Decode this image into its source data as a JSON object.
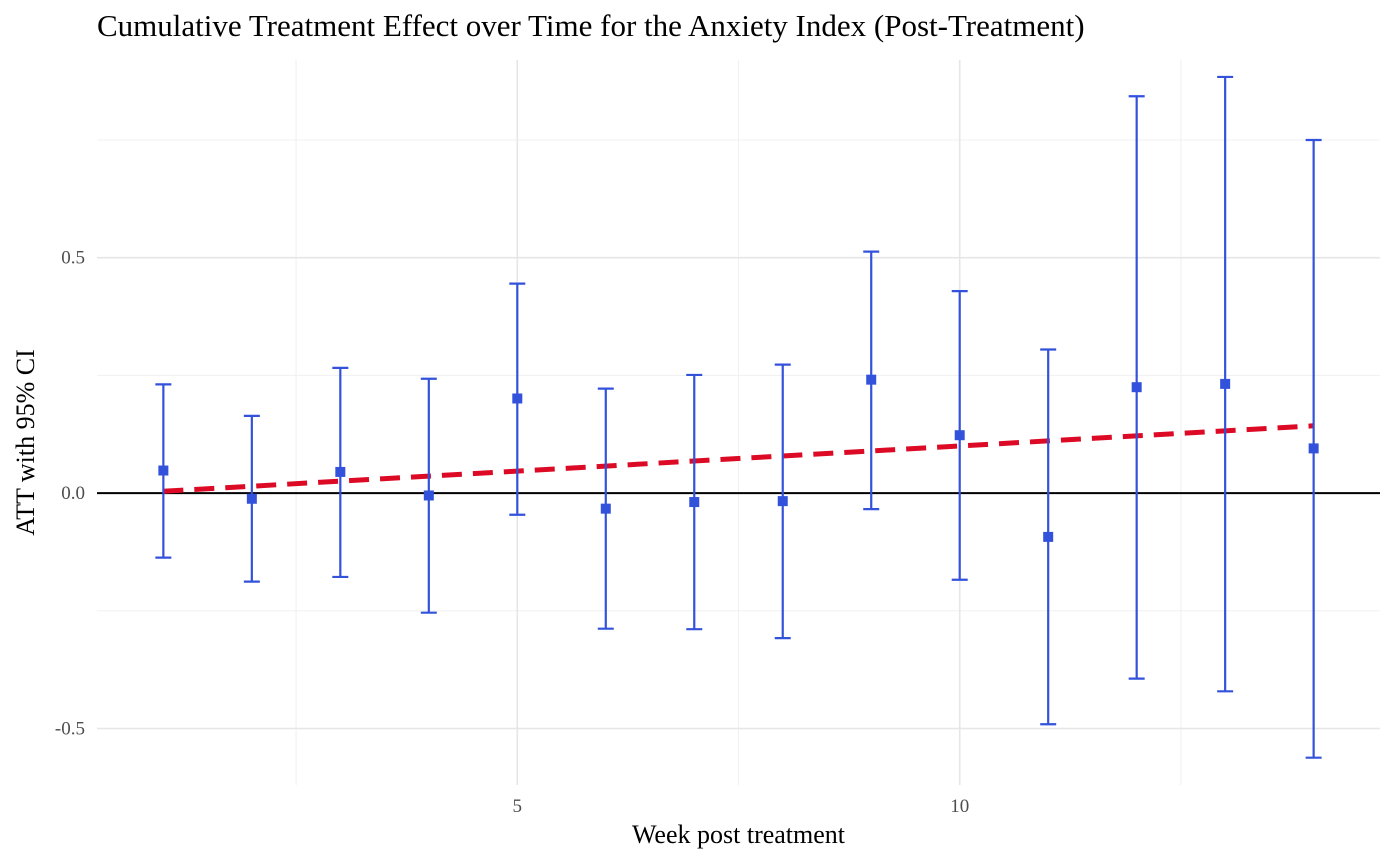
{
  "chart_data": {
    "type": "scatter",
    "title": "Cumulative Treatment Effect over Time for the Anxiety Index (Post-Treatment)",
    "xlabel": "Week post treatment",
    "ylabel": "ATT with 95% CI",
    "xlim": [
      0.25,
      14.75
    ],
    "ylim": [
      -0.62,
      0.92
    ],
    "x_ticks": [
      5,
      10
    ],
    "x_tick_labels": [
      "5",
      "10"
    ],
    "y_ticks": [
      -0.5,
      0.0,
      0.5
    ],
    "y_tick_labels": [
      "-0.5",
      "0.0",
      "0.5"
    ],
    "grid": true,
    "series": [
      {
        "type": "errorbar",
        "color": "#3352DB",
        "x": [
          1,
          2,
          3,
          4,
          5,
          6,
          7,
          8,
          9,
          10,
          11,
          12,
          13,
          14
        ],
        "y": [
          0.048,
          -0.012,
          0.045,
          -0.005,
          0.201,
          -0.033,
          -0.019,
          -0.017,
          0.241,
          0.123,
          -0.093,
          0.225,
          0.232,
          0.095
        ],
        "ci_lower": [
          -0.137,
          -0.188,
          -0.178,
          -0.254,
          -0.046,
          -0.288,
          -0.289,
          -0.308,
          -0.034,
          -0.184,
          -0.491,
          -0.394,
          -0.421,
          -0.562
        ],
        "ci_upper": [
          0.231,
          0.164,
          0.266,
          0.243,
          0.445,
          0.222,
          0.251,
          0.273,
          0.513,
          0.429,
          0.305,
          0.843,
          0.884,
          0.75
        ]
      },
      {
        "type": "line",
        "style": "dashed",
        "color": "#DC0A25",
        "x": [
          1,
          14
        ],
        "y": [
          0.004,
          0.143
        ]
      }
    ],
    "reference_line": {
      "y": 0.0,
      "color": "#000000"
    }
  }
}
